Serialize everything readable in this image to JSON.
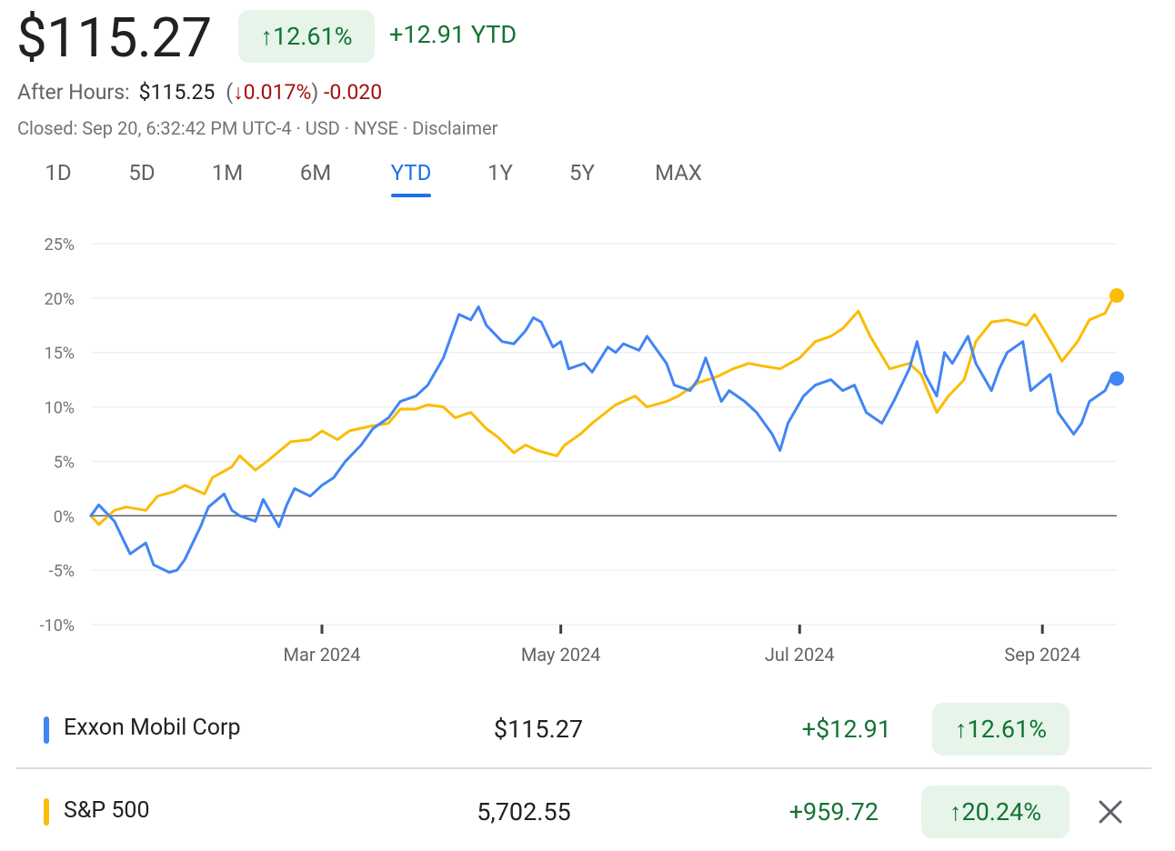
{
  "quote": {
    "price": "$115.27",
    "change_pct": "↑12.61%",
    "change_abs": "+12.91 YTD",
    "after_hours_label": "After Hours:",
    "after_hours_price": "$115.25",
    "after_hours_pct": "↓0.017%",
    "after_hours_abs": "-0.020",
    "closed_text": "Closed: Sep 20, 6:32:42 PM UTC-4 · USD · NYSE · Disclaimer"
  },
  "tabs": [
    {
      "label": "1D"
    },
    {
      "label": "5D"
    },
    {
      "label": "1M"
    },
    {
      "label": "6M"
    },
    {
      "label": "YTD"
    },
    {
      "label": "1Y"
    },
    {
      "label": "5Y"
    },
    {
      "label": "MAX"
    }
  ],
  "active_tab": "YTD",
  "colors": {
    "series_xom": "#4285f4",
    "series_spx": "#fbbc04",
    "positive": "#137333",
    "negative": "#a50e0e",
    "accent": "#1a73e8"
  },
  "chart_data": {
    "type": "line",
    "title": "",
    "xlabel": "",
    "ylabel": "",
    "ylim": [
      -10,
      25
    ],
    "y_ticks": [
      -10,
      -5,
      0,
      5,
      10,
      15,
      20,
      25
    ],
    "y_tick_labels": [
      "-10%",
      "-5%",
      "0%",
      "5%",
      "10%",
      "15%",
      "20%",
      "25%"
    ],
    "x_range": [
      "2024-01-02",
      "2024-09-20"
    ],
    "x_ticks": [
      {
        "date": "2024-03-01",
        "label": "Mar 2024"
      },
      {
        "date": "2024-05-01",
        "label": "May 2024"
      },
      {
        "date": "2024-07-01",
        "label": "Jul 2024"
      },
      {
        "date": "2024-09-01",
        "label": "Sep 2024"
      }
    ],
    "baseline": 0,
    "grid": true,
    "series": [
      {
        "name": "Exxon Mobil Corp",
        "color": "#4285f4",
        "points": [
          [
            "2024-01-02",
            0.0
          ],
          [
            "2024-01-04",
            1.0
          ],
          [
            "2024-01-08",
            -0.5
          ],
          [
            "2024-01-10",
            -2.0
          ],
          [
            "2024-01-12",
            -3.5
          ],
          [
            "2024-01-16",
            -2.5
          ],
          [
            "2024-01-18",
            -4.5
          ],
          [
            "2024-01-22",
            -5.2
          ],
          [
            "2024-01-24",
            -5.0
          ],
          [
            "2024-01-26",
            -4.0
          ],
          [
            "2024-01-30",
            -1.0
          ],
          [
            "2024-02-01",
            0.8
          ],
          [
            "2024-02-05",
            2.0
          ],
          [
            "2024-02-07",
            0.5
          ],
          [
            "2024-02-09",
            0.0
          ],
          [
            "2024-02-13",
            -0.5
          ],
          [
            "2024-02-15",
            1.5
          ],
          [
            "2024-02-19",
            -1.0
          ],
          [
            "2024-02-21",
            1.0
          ],
          [
            "2024-02-23",
            2.5
          ],
          [
            "2024-02-27",
            1.8
          ],
          [
            "2024-03-01",
            2.8
          ],
          [
            "2024-03-04",
            3.5
          ],
          [
            "2024-03-07",
            5.0
          ],
          [
            "2024-03-11",
            6.5
          ],
          [
            "2024-03-14",
            8.0
          ],
          [
            "2024-03-18",
            9.0
          ],
          [
            "2024-03-21",
            10.5
          ],
          [
            "2024-03-25",
            11.0
          ],
          [
            "2024-03-28",
            12.0
          ],
          [
            "2024-04-01",
            14.5
          ],
          [
            "2024-04-03",
            16.5
          ],
          [
            "2024-04-05",
            18.5
          ],
          [
            "2024-04-08",
            18.0
          ],
          [
            "2024-04-10",
            19.2
          ],
          [
            "2024-04-12",
            17.5
          ],
          [
            "2024-04-16",
            16.0
          ],
          [
            "2024-04-19",
            15.8
          ],
          [
            "2024-04-22",
            17.0
          ],
          [
            "2024-04-24",
            18.2
          ],
          [
            "2024-04-26",
            17.8
          ],
          [
            "2024-04-29",
            15.5
          ],
          [
            "2024-05-01",
            16.0
          ],
          [
            "2024-05-03",
            13.5
          ],
          [
            "2024-05-07",
            14.0
          ],
          [
            "2024-05-09",
            13.2
          ],
          [
            "2024-05-13",
            15.5
          ],
          [
            "2024-05-15",
            15.0
          ],
          [
            "2024-05-17",
            15.8
          ],
          [
            "2024-05-21",
            15.2
          ],
          [
            "2024-05-23",
            16.5
          ],
          [
            "2024-05-28",
            14.0
          ],
          [
            "2024-05-30",
            12.0
          ],
          [
            "2024-06-03",
            11.5
          ],
          [
            "2024-06-05",
            12.5
          ],
          [
            "2024-06-07",
            14.5
          ],
          [
            "2024-06-11",
            10.5
          ],
          [
            "2024-06-13",
            11.5
          ],
          [
            "2024-06-17",
            10.5
          ],
          [
            "2024-06-20",
            9.5
          ],
          [
            "2024-06-24",
            7.5
          ],
          [
            "2024-06-26",
            6.0
          ],
          [
            "2024-06-28",
            8.5
          ],
          [
            "2024-07-02",
            11.0
          ],
          [
            "2024-07-05",
            12.0
          ],
          [
            "2024-07-09",
            12.5
          ],
          [
            "2024-07-12",
            11.5
          ],
          [
            "2024-07-15",
            12.0
          ],
          [
            "2024-07-18",
            9.5
          ],
          [
            "2024-07-22",
            8.5
          ],
          [
            "2024-07-25",
            10.5
          ],
          [
            "2024-07-29",
            13.5
          ],
          [
            "2024-07-31",
            16.0
          ],
          [
            "2024-08-02",
            13.0
          ],
          [
            "2024-08-05",
            11.0
          ],
          [
            "2024-08-07",
            15.0
          ],
          [
            "2024-08-09",
            14.0
          ],
          [
            "2024-08-13",
            16.5
          ],
          [
            "2024-08-15",
            14.0
          ],
          [
            "2024-08-19",
            11.5
          ],
          [
            "2024-08-21",
            13.5
          ],
          [
            "2024-08-23",
            15.0
          ],
          [
            "2024-08-27",
            16.0
          ],
          [
            "2024-08-29",
            11.5
          ],
          [
            "2024-09-03",
            13.0
          ],
          [
            "2024-09-05",
            9.5
          ],
          [
            "2024-09-09",
            7.5
          ],
          [
            "2024-09-11",
            8.5
          ],
          [
            "2024-09-13",
            10.5
          ],
          [
            "2024-09-17",
            11.5
          ],
          [
            "2024-09-19",
            13.0
          ],
          [
            "2024-09-20",
            12.61
          ]
        ]
      },
      {
        "name": "S&P 500",
        "color": "#fbbc04",
        "points": [
          [
            "2024-01-02",
            0.0
          ],
          [
            "2024-01-04",
            -0.8
          ],
          [
            "2024-01-08",
            0.5
          ],
          [
            "2024-01-11",
            0.8
          ],
          [
            "2024-01-16",
            0.5
          ],
          [
            "2024-01-19",
            1.8
          ],
          [
            "2024-01-23",
            2.2
          ],
          [
            "2024-01-26",
            2.8
          ],
          [
            "2024-01-31",
            2.0
          ],
          [
            "2024-02-02",
            3.5
          ],
          [
            "2024-02-07",
            4.5
          ],
          [
            "2024-02-09",
            5.5
          ],
          [
            "2024-02-13",
            4.2
          ],
          [
            "2024-02-16",
            5.0
          ],
          [
            "2024-02-22",
            6.8
          ],
          [
            "2024-02-27",
            7.0
          ],
          [
            "2024-03-01",
            7.8
          ],
          [
            "2024-03-05",
            7.0
          ],
          [
            "2024-03-08",
            7.8
          ],
          [
            "2024-03-13",
            8.2
          ],
          [
            "2024-03-18",
            8.5
          ],
          [
            "2024-03-21",
            9.8
          ],
          [
            "2024-03-25",
            9.8
          ],
          [
            "2024-03-28",
            10.2
          ],
          [
            "2024-04-01",
            10.0
          ],
          [
            "2024-04-04",
            9.0
          ],
          [
            "2024-04-08",
            9.5
          ],
          [
            "2024-04-12",
            8.0
          ],
          [
            "2024-04-15",
            7.2
          ],
          [
            "2024-04-19",
            5.8
          ],
          [
            "2024-04-22",
            6.5
          ],
          [
            "2024-04-25",
            6.0
          ],
          [
            "2024-04-30",
            5.5
          ],
          [
            "2024-05-02",
            6.5
          ],
          [
            "2024-05-06",
            7.5
          ],
          [
            "2024-05-09",
            8.5
          ],
          [
            "2024-05-15",
            10.2
          ],
          [
            "2024-05-20",
            11.0
          ],
          [
            "2024-05-23",
            10.0
          ],
          [
            "2024-05-28",
            10.5
          ],
          [
            "2024-05-31",
            11.0
          ],
          [
            "2024-06-05",
            12.2
          ],
          [
            "2024-06-10",
            12.8
          ],
          [
            "2024-06-14",
            13.5
          ],
          [
            "2024-06-18",
            14.0
          ],
          [
            "2024-06-21",
            13.8
          ],
          [
            "2024-06-26",
            13.5
          ],
          [
            "2024-07-01",
            14.5
          ],
          [
            "2024-07-05",
            16.0
          ],
          [
            "2024-07-09",
            16.5
          ],
          [
            "2024-07-12",
            17.2
          ],
          [
            "2024-07-16",
            18.8
          ],
          [
            "2024-07-19",
            16.5
          ],
          [
            "2024-07-24",
            13.5
          ],
          [
            "2024-07-29",
            14.0
          ],
          [
            "2024-08-01",
            13.0
          ],
          [
            "2024-08-05",
            9.5
          ],
          [
            "2024-08-08",
            11.0
          ],
          [
            "2024-08-12",
            12.5
          ],
          [
            "2024-08-15",
            16.0
          ],
          [
            "2024-08-19",
            17.8
          ],
          [
            "2024-08-23",
            18.0
          ],
          [
            "2024-08-28",
            17.5
          ],
          [
            "2024-08-30",
            18.5
          ],
          [
            "2024-09-04",
            15.5
          ],
          [
            "2024-09-06",
            14.2
          ],
          [
            "2024-09-10",
            16.0
          ],
          [
            "2024-09-13",
            18.0
          ],
          [
            "2024-09-17",
            18.6
          ],
          [
            "2024-09-19",
            20.0
          ],
          [
            "2024-09-20",
            20.24
          ]
        ]
      }
    ]
  },
  "legend": [
    {
      "name": "Exxon Mobil Corp",
      "price": "$115.27",
      "change": "+$12.91",
      "pct": "↑12.61%",
      "color": "#4285f4"
    },
    {
      "name": "S&P 500",
      "price": "5,702.55",
      "change": "+959.72",
      "pct": "↑20.24%",
      "color": "#fbbc04"
    }
  ]
}
